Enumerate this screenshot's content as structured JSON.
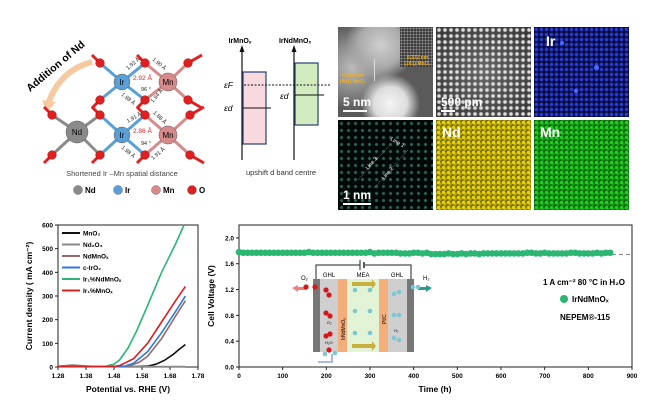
{
  "structure": {
    "addition_label": "Addition of Nd",
    "atoms": {
      "nd": "Nd",
      "ir": "Ir",
      "mn": "Mn"
    },
    "top_bonds": {
      "ir_mn": "2.92 Å",
      "angle": "96 °",
      "ir_o_up": "1.92 Å",
      "mn_o_up": "1.90 Å",
      "ir_o_down": "1.98 Å",
      "mn_o_down": "1.94 Å"
    },
    "bottom_bonds": {
      "ir_mn": "2.86 Å",
      "angle": "94 °",
      "ir_o_up": "1.91 Å",
      "mn_o_up": "1.88 Å",
      "ir_o_down": "1.98 Å",
      "mn_o_down": "1.91 Å"
    },
    "caption": "Shortened Ir –Mn spatial distance",
    "legend": [
      {
        "label": "Nd",
        "color": "#8a8a8a"
      },
      {
        "label": "Ir",
        "color": "#5aa0d8"
      },
      {
        "label": "Mn",
        "color": "#d88a8a"
      },
      {
        "label": "O",
        "color": "#e02020"
      }
    ]
  },
  "band": {
    "left_title": "IrMnOₓ",
    "right_title": "IrNdMnOₓ",
    "fermi_label": "εF",
    "d_label_left": "εd",
    "d_label_right": "εd",
    "caption": "upshift d band centre",
    "left_color": "#f9d9e0",
    "right_color": "#d2ecc0"
  },
  "micrographs": {
    "haadf_scale": "5 nm",
    "haadf_ann1": "0.269 nm (401) MnO₂",
    "haadf_ann2": "0.372 nm (201) MnO₂",
    "hr_scale": "500 pm",
    "ir_label": "Ir",
    "line_labels": [
      "Line 1",
      "Line 2",
      "Line 3"
    ],
    "line_scale": "1 nm",
    "nd_label": "Nd",
    "mn_label": "Mn"
  },
  "chart_data": [
    {
      "type": "line",
      "xlabel": "Potential vs. RHE (V)",
      "ylabel": "Current density ( mA cm⁻²)",
      "xlim": [
        1.28,
        1.78
      ],
      "ylim": [
        0,
        600
      ],
      "xticks": [
        "1.28",
        "1.38",
        "1.48",
        "1.58",
        "1.68",
        "1.78"
      ],
      "yticks": [
        "0",
        "100",
        "200",
        "300",
        "400",
        "500",
        "600"
      ],
      "legend_position": "top-left",
      "series": [
        {
          "name": "MnO₂",
          "color": "#111111",
          "points": [
            [
              1.28,
              2
            ],
            [
              1.55,
              2
            ],
            [
              1.6,
              4
            ],
            [
              1.63,
              12
            ],
            [
              1.66,
              28
            ],
            [
              1.69,
              52
            ],
            [
              1.71,
              72
            ],
            [
              1.735,
              95
            ]
          ]
        },
        {
          "name": "Nd₂O₃",
          "color": "#8a8a8a",
          "points": [
            [
              1.28,
              3
            ],
            [
              1.33,
              6
            ],
            [
              1.38,
              3
            ],
            [
              1.5,
              2
            ],
            [
              1.735,
              2
            ]
          ]
        },
        {
          "name": "NdMnOₓ",
          "color": "#9a6a6a",
          "points": [
            [
              1.28,
              3
            ],
            [
              1.33,
              8
            ],
            [
              1.4,
              3
            ],
            [
              1.53,
              3
            ],
            [
              1.57,
              20
            ],
            [
              1.6,
              45
            ],
            [
              1.65,
              120
            ],
            [
              1.7,
              215
            ],
            [
              1.735,
              280
            ]
          ]
        },
        {
          "name": "c-IrO₂",
          "color": "#2a7ae0",
          "points": [
            [
              1.28,
              2
            ],
            [
              1.5,
              2
            ],
            [
              1.52,
              4
            ],
            [
              1.55,
              16
            ],
            [
              1.6,
              65
            ],
            [
              1.65,
              145
            ],
            [
              1.7,
              235
            ],
            [
              1.735,
              300
            ]
          ]
        },
        {
          "name": "Ir₁%NdMnOₓ",
          "color": "#2bb673",
          "points": [
            [
              1.28,
              3
            ],
            [
              1.45,
              3
            ],
            [
              1.48,
              12
            ],
            [
              1.5,
              30
            ],
            [
              1.53,
              80
            ],
            [
              1.56,
              150
            ],
            [
              1.6,
              260
            ],
            [
              1.65,
              400
            ],
            [
              1.7,
              520
            ],
            [
              1.73,
              600
            ]
          ]
        },
        {
          "name": "Ir₁%MnOₓ",
          "color": "#d42020",
          "points": [
            [
              1.28,
              2
            ],
            [
              1.48,
              2
            ],
            [
              1.5,
              6
            ],
            [
              1.55,
              35
            ],
            [
              1.6,
              100
            ],
            [
              1.65,
              190
            ],
            [
              1.7,
              280
            ],
            [
              1.735,
              340
            ]
          ]
        }
      ]
    },
    {
      "type": "scatter",
      "xlabel": "Time (h)",
      "ylabel": "Cell Voltage (V)",
      "xlim": [
        0,
        900
      ],
      "ylim": [
        0,
        2.2
      ],
      "xticks": [
        "0",
        "100",
        "200",
        "300",
        "400",
        "500",
        "600",
        "700",
        "800",
        "900"
      ],
      "yticks": [
        "0.0",
        "0.4",
        "0.8",
        "1.2",
        "1.6",
        "2.0"
      ],
      "series": [
        {
          "name": "IrNdMnOₓ",
          "color": "#2bb673",
          "time_h": [
            0,
            10,
            20,
            30,
            40,
            50,
            60,
            70,
            80,
            90,
            100,
            110,
            120,
            130,
            140,
            150,
            160,
            170,
            180,
            190,
            200,
            210,
            220,
            230,
            240,
            250,
            260,
            270,
            280,
            290,
            300,
            310,
            320,
            330,
            340,
            350,
            360,
            370,
            380,
            390,
            400,
            410,
            420,
            430,
            440,
            450,
            460,
            470,
            480,
            490,
            500,
            510,
            520,
            530,
            540,
            550,
            560,
            570,
            580,
            590,
            600,
            610,
            620,
            630,
            640,
            650,
            660,
            670,
            680,
            690,
            700,
            710,
            720,
            730,
            740,
            750,
            760,
            770,
            780,
            790,
            800,
            810,
            820,
            830,
            840,
            850
          ],
          "voltage_v": [
            1.78,
            1.77,
            1.77,
            1.77,
            1.77,
            1.77,
            1.77,
            1.77,
            1.77,
            1.77,
            1.77,
            1.77,
            1.77,
            1.77,
            1.77,
            1.77,
            1.78,
            1.77,
            1.77,
            1.77,
            1.77,
            1.77,
            1.77,
            1.77,
            1.77,
            1.77,
            1.77,
            1.77,
            1.77,
            1.77,
            1.78,
            1.76,
            1.77,
            1.77,
            1.77,
            1.77,
            1.77,
            1.76,
            1.76,
            1.76,
            1.77,
            1.77,
            1.76,
            1.77,
            1.75,
            1.75,
            1.75,
            1.75,
            1.76,
            1.75,
            1.75,
            1.76,
            1.75,
            1.76,
            1.76,
            1.75,
            1.76,
            1.76,
            1.76,
            1.76,
            1.76,
            1.76,
            1.76,
            1.76,
            1.76,
            1.76,
            1.77,
            1.77,
            1.76,
            1.76,
            1.77,
            1.76,
            1.76,
            1.76,
            1.76,
            1.76,
            1.77,
            1.77,
            1.76,
            1.76,
            1.76,
            1.76,
            1.77,
            1.76,
            1.77,
            1.77
          ]
        }
      ],
      "annotations": {
        "condition": "1 A cm⁻² 80 °C in H₂O",
        "legend": "IrNdMnOₓ",
        "membrane": "NEPEM®-115"
      },
      "inset": {
        "o2": "O₂",
        "h2": "H₂",
        "ghl_left": "GHL",
        "mea": "MEA",
        "ghl_right": "GHL",
        "anode": "IrNdMnOₓ",
        "cathode": "Pt/C",
        "o2_small": "O₂",
        "h2o_small": "H₂O",
        "h2_small": "H₂"
      }
    }
  ]
}
